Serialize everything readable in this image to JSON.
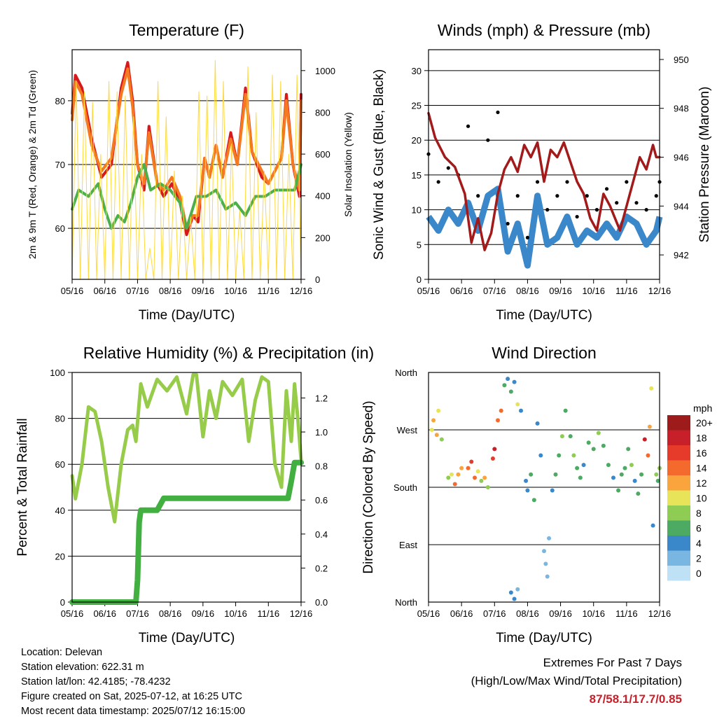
{
  "figure": {
    "time_ticks": [
      "05/16",
      "06/16",
      "07/16",
      "08/16",
      "09/16",
      "10/16",
      "11/16",
      "12/16"
    ],
    "time_label": "Time (Day/UTC)"
  },
  "chart_data": [
    {
      "type": "line",
      "title": "Temperature (F)",
      "xlabel": "Time (Day/UTC)",
      "ylabel": "2m & 9m T (Red, Orange) & 2m Td (Green)",
      "ylabel_right": "Solar Insolation (Yellow)",
      "ylim": [
        52,
        88
      ],
      "yticks": [
        60,
        70,
        80
      ],
      "ylim_right": [
        0,
        1100
      ],
      "yticks_right": [
        0,
        200,
        400,
        600,
        800,
        1000
      ],
      "grid": true,
      "series": [
        {
          "color": "#d7191c",
          "axis": "left",
          "x": [
            0.0,
            0.1,
            0.3,
            0.6,
            0.9,
            1.2,
            1.5,
            1.7,
            1.85,
            2.0,
            2.2,
            2.35,
            2.6,
            2.8,
            3.05,
            3.3,
            3.5,
            3.7,
            3.85,
            4.05,
            4.2,
            4.4,
            4.6,
            4.85,
            5.05,
            5.3,
            5.5,
            5.8,
            6.0,
            6.2,
            6.4,
            6.55,
            6.75,
            6.95,
            7.0
          ],
          "y": [
            78,
            84,
            82,
            74,
            68,
            70,
            82,
            86,
            80,
            70,
            66,
            76,
            67,
            65,
            67,
            64,
            59,
            62,
            61,
            71,
            68,
            73,
            68,
            75,
            70,
            82,
            72,
            68,
            67,
            69,
            71,
            81,
            70,
            65,
            81
          ]
        },
        {
          "color": "#f47920",
          "axis": "left",
          "x": [
            0.0,
            0.1,
            0.3,
            0.6,
            0.9,
            1.2,
            1.5,
            1.7,
            1.85,
            2.0,
            2.2,
            2.35,
            2.6,
            2.8,
            3.05,
            3.3,
            3.5,
            3.7,
            3.85,
            4.05,
            4.2,
            4.4,
            4.6,
            4.85,
            5.05,
            5.3,
            5.5,
            5.8,
            6.0,
            6.2,
            6.4,
            6.55,
            6.75,
            6.95,
            7.0
          ],
          "y": [
            77,
            83,
            81,
            73,
            69,
            71,
            81,
            85,
            79,
            70,
            67,
            75,
            67,
            66,
            68,
            65,
            60,
            62,
            62,
            71,
            68,
            73,
            68,
            74,
            70,
            81,
            72,
            69,
            67,
            69,
            71,
            80,
            70,
            66,
            80
          ]
        },
        {
          "color": "#4daf4a",
          "axis": "left",
          "x": [
            0.0,
            0.2,
            0.5,
            0.8,
            1.0,
            1.2,
            1.4,
            1.6,
            1.8,
            2.0,
            2.2,
            2.4,
            2.7,
            3.0,
            3.3,
            3.5,
            3.8,
            4.1,
            4.4,
            4.7,
            5.0,
            5.3,
            5.6,
            5.9,
            6.2,
            6.5,
            6.8,
            7.0
          ],
          "y": [
            63,
            66,
            65,
            67,
            63,
            60,
            62,
            61,
            64,
            68,
            70,
            66,
            67,
            66,
            64,
            60,
            65,
            65,
            66,
            63,
            64,
            62,
            65,
            65,
            66,
            66,
            66,
            70
          ]
        },
        {
          "color": "#ffd93d",
          "axis": "right",
          "style": "diurnal",
          "day_peaks": [
            950,
            900,
            850,
            600,
            950,
            900,
            880,
            780,
            600,
            150,
            950,
            780,
            520,
            400,
            300,
            900,
            880,
            1050,
            950,
            650,
            330,
            1020,
            800,
            520,
            980,
            950,
            600,
            980
          ],
          "day_starts": [
            0.0,
            0.25,
            0.5,
            0.75,
            1.0,
            1.25,
            1.5,
            1.75,
            2.0,
            2.25,
            2.5,
            2.75,
            3.0,
            3.25,
            3.5,
            3.75,
            4.0,
            4.25,
            4.5,
            4.75,
            5.0,
            5.25,
            5.5,
            5.75,
            6.0,
            6.25,
            6.5,
            6.75
          ]
        }
      ]
    },
    {
      "type": "scatter",
      "title": "Winds (mph) & Pressure (mb)",
      "xlabel": "Time (Day/UTC)",
      "ylabel": "Sonic Wind & Gust (Blue, Black)",
      "ylabel_right": "Station Pressure (Maroon)",
      "ylim": [
        0,
        33
      ],
      "yticks": [
        0,
        5,
        10,
        15,
        20,
        25,
        30
      ],
      "ylim_right": [
        941,
        950.4
      ],
      "yticks_right": [
        942,
        944,
        946,
        948,
        950
      ],
      "grid": true,
      "series": [
        {
          "color": "#3a87c9",
          "type": "band",
          "x": [
            0.0,
            0.3,
            0.6,
            0.9,
            1.2,
            1.5,
            1.8,
            2.1,
            2.4,
            2.7,
            3.0,
            3.3,
            3.6,
            3.9,
            4.2,
            4.5,
            4.8,
            5.1,
            5.4,
            5.7,
            6.0,
            6.3,
            6.6,
            6.9,
            7.0
          ],
          "y": [
            9,
            7,
            10,
            8,
            11,
            7,
            12,
            13,
            4,
            8,
            2,
            12,
            5,
            6,
            9,
            5,
            7,
            6,
            8,
            6,
            9,
            8,
            5,
            7,
            9
          ]
        },
        {
          "color": "#000000",
          "type": "scatter",
          "x": [
            0.0,
            0.3,
            0.6,
            0.9,
            1.2,
            1.5,
            1.8,
            2.1,
            2.4,
            2.7,
            3.0,
            3.3,
            3.6,
            3.9,
            4.2,
            4.5,
            4.8,
            5.1,
            5.4,
            5.7,
            6.0,
            6.3,
            6.6,
            6.9,
            7.0
          ],
          "y": [
            18,
            14,
            16,
            15,
            22,
            12,
            20,
            24,
            8,
            12,
            6,
            14,
            10,
            12,
            14,
            9,
            12,
            10,
            13,
            11,
            14,
            11,
            10,
            12,
            14
          ]
        },
        {
          "color": "#a31a1a",
          "type": "line",
          "axis": "right",
          "x": [
            0.0,
            0.2,
            0.5,
            0.8,
            1.1,
            1.3,
            1.5,
            1.7,
            1.9,
            2.1,
            2.3,
            2.5,
            2.7,
            2.9,
            3.1,
            3.3,
            3.5,
            3.7,
            3.9,
            4.1,
            4.3,
            4.5,
            4.7,
            4.9,
            5.1,
            5.3,
            5.5,
            5.8,
            6.0,
            6.2,
            6.4,
            6.6,
            6.8,
            6.9,
            7.0
          ],
          "y": [
            947.8,
            946.8,
            946.0,
            945.6,
            944.5,
            942.5,
            943.5,
            942.2,
            942.9,
            944.5,
            945.5,
            946.0,
            945.4,
            946.5,
            946.0,
            946.6,
            945.0,
            946.3,
            946.0,
            946.6,
            945.8,
            945.0,
            944.5,
            943.5,
            943.0,
            944.5,
            944.0,
            943.0,
            944.0,
            945.0,
            946.0,
            945.5,
            946.5,
            946.0,
            946.0
          ]
        }
      ]
    },
    {
      "type": "line",
      "title": "Relative Humidity (%) & Precipitation (in)",
      "xlabel": "Time (Day/UTC)",
      "ylabel": "Percent & Total Rainfall",
      "ylim": [
        0,
        100
      ],
      "yticks": [
        0,
        20,
        40,
        60,
        80,
        100
      ],
      "ylim_right": [
        0,
        1.35
      ],
      "yticks_right": [
        0.0,
        0.2,
        0.4,
        0.6,
        0.8,
        1.0,
        1.2
      ],
      "grid": true,
      "series": [
        {
          "color": "#97cc4a",
          "axis": "left",
          "x": [
            0.0,
            0.1,
            0.3,
            0.5,
            0.7,
            0.9,
            1.1,
            1.3,
            1.5,
            1.7,
            1.85,
            1.95,
            2.1,
            2.3,
            2.6,
            2.9,
            3.2,
            3.5,
            3.7,
            3.8,
            4.0,
            4.2,
            4.4,
            4.6,
            4.9,
            5.2,
            5.4,
            5.6,
            5.8,
            6.0,
            6.2,
            6.4,
            6.55,
            6.7,
            6.8,
            6.9,
            7.0
          ],
          "y": [
            55,
            45,
            60,
            85,
            83,
            70,
            50,
            35,
            60,
            75,
            77,
            70,
            95,
            85,
            97,
            92,
            98,
            82,
            99,
            99,
            72,
            92,
            80,
            96,
            90,
            97,
            70,
            88,
            98,
            96,
            60,
            50,
            92,
            70,
            95,
            80,
            62
          ]
        },
        {
          "color": "#41b041",
          "axis": "right",
          "style": "steps",
          "x": [
            0.0,
            1.95,
            2.0,
            2.05,
            2.1,
            2.2,
            2.6,
            2.8,
            2.9,
            3.5,
            4.2,
            5.0,
            5.8,
            6.6,
            6.7,
            6.8,
            7.0
          ],
          "y": [
            0.0,
            0.0,
            0.13,
            0.47,
            0.54,
            0.54,
            0.54,
            0.61,
            0.61,
            0.61,
            0.61,
            0.61,
            0.61,
            0.61,
            0.71,
            0.82,
            0.82
          ]
        }
      ]
    },
    {
      "type": "scatter",
      "title": "Wind Direction",
      "xlabel": "Time (Day/UTC)",
      "ylabel": "Direction (Colored By Speed)",
      "ytick_labels": [
        "North",
        "East",
        "South",
        "West",
        "North"
      ],
      "ylim": [
        0,
        360
      ],
      "grid": true,
      "legend": {
        "title": "mph",
        "labels": [
          "20+",
          "18",
          "16",
          "14",
          "12",
          "10",
          "8",
          "6",
          "4",
          "2",
          "0"
        ],
        "colors": [
          "#9e1b1b",
          "#c8202a",
          "#e63a2a",
          "#f46a2c",
          "#f9a43c",
          "#e8e45a",
          "#8fcc54",
          "#4caa62",
          "#3a87c9",
          "#7ab6e2",
          "#bfe1f6"
        ],
        "placement": "right"
      },
      "points": [
        {
          "x": 0.1,
          "y": 270,
          "speed": 9
        },
        {
          "x": 0.15,
          "y": 285,
          "speed": 11
        },
        {
          "x": 0.25,
          "y": 262,
          "speed": 12
        },
        {
          "x": 0.3,
          "y": 300,
          "speed": 10
        },
        {
          "x": 0.4,
          "y": 255,
          "speed": 7
        },
        {
          "x": 0.6,
          "y": 195,
          "speed": 8
        },
        {
          "x": 0.7,
          "y": 200,
          "speed": 9
        },
        {
          "x": 0.8,
          "y": 185,
          "speed": 13
        },
        {
          "x": 0.9,
          "y": 200,
          "speed": 12
        },
        {
          "x": 1.0,
          "y": 210,
          "speed": 11
        },
        {
          "x": 1.2,
          "y": 210,
          "speed": 14
        },
        {
          "x": 1.3,
          "y": 220,
          "speed": 16
        },
        {
          "x": 1.4,
          "y": 195,
          "speed": 13
        },
        {
          "x": 1.5,
          "y": 205,
          "speed": 9
        },
        {
          "x": 1.6,
          "y": 190,
          "speed": 7
        },
        {
          "x": 1.7,
          "y": 195,
          "speed": 12
        },
        {
          "x": 1.8,
          "y": 180,
          "speed": 8
        },
        {
          "x": 1.95,
          "y": 225,
          "speed": 15
        },
        {
          "x": 2.0,
          "y": 240,
          "speed": 17
        },
        {
          "x": 2.1,
          "y": 285,
          "speed": 14
        },
        {
          "x": 2.2,
          "y": 300,
          "speed": 13
        },
        {
          "x": 2.3,
          "y": 340,
          "speed": 6
        },
        {
          "x": 2.4,
          "y": 350,
          "speed": 4
        },
        {
          "x": 2.5,
          "y": 330,
          "speed": 5
        },
        {
          "x": 2.6,
          "y": 345,
          "speed": 3
        },
        {
          "x": 2.7,
          "y": 310,
          "speed": 10
        },
        {
          "x": 2.8,
          "y": 300,
          "speed": 3
        },
        {
          "x": 2.5,
          "y": 15,
          "speed": 3
        },
        {
          "x": 2.6,
          "y": 5,
          "speed": 4
        },
        {
          "x": 2.7,
          "y": 20,
          "speed": 2
        },
        {
          "x": 2.95,
          "y": 190,
          "speed": 4
        },
        {
          "x": 3.0,
          "y": 175,
          "speed": 3
        },
        {
          "x": 3.1,
          "y": 200,
          "speed": 5
        },
        {
          "x": 3.2,
          "y": 160,
          "speed": 6
        },
        {
          "x": 3.3,
          "y": 280,
          "speed": 4
        },
        {
          "x": 3.4,
          "y": 230,
          "speed": 3
        },
        {
          "x": 3.5,
          "y": 80,
          "speed": 1
        },
        {
          "x": 3.55,
          "y": 60,
          "speed": 2
        },
        {
          "x": 3.6,
          "y": 40,
          "speed": 1
        },
        {
          "x": 3.65,
          "y": 100,
          "speed": 2
        },
        {
          "x": 3.75,
          "y": 175,
          "speed": 4
        },
        {
          "x": 3.85,
          "y": 200,
          "speed": 5
        },
        {
          "x": 3.95,
          "y": 230,
          "speed": 6
        },
        {
          "x": 4.05,
          "y": 260,
          "speed": 7
        },
        {
          "x": 4.15,
          "y": 300,
          "speed": 6
        },
        {
          "x": 4.3,
          "y": 260,
          "speed": 5
        },
        {
          "x": 4.4,
          "y": 230,
          "speed": 7
        },
        {
          "x": 4.5,
          "y": 210,
          "speed": 6
        },
        {
          "x": 4.6,
          "y": 195,
          "speed": 5
        },
        {
          "x": 4.7,
          "y": 215,
          "speed": 4
        },
        {
          "x": 4.85,
          "y": 250,
          "speed": 6
        },
        {
          "x": 5.0,
          "y": 240,
          "speed": 5
        },
        {
          "x": 5.15,
          "y": 265,
          "speed": 7
        },
        {
          "x": 5.3,
          "y": 245,
          "speed": 6
        },
        {
          "x": 5.45,
          "y": 215,
          "speed": 5
        },
        {
          "x": 5.6,
          "y": 195,
          "speed": 4
        },
        {
          "x": 5.75,
          "y": 175,
          "speed": 6
        },
        {
          "x": 5.85,
          "y": 200,
          "speed": 5
        },
        {
          "x": 5.95,
          "y": 210,
          "speed": 6
        },
        {
          "x": 6.05,
          "y": 240,
          "speed": 5
        },
        {
          "x": 6.15,
          "y": 215,
          "speed": 7
        },
        {
          "x": 6.25,
          "y": 190,
          "speed": 4
        },
        {
          "x": 6.35,
          "y": 170,
          "speed": 6
        },
        {
          "x": 6.45,
          "y": 200,
          "speed": 5
        },
        {
          "x": 6.55,
          "y": 255,
          "speed": 17
        },
        {
          "x": 6.65,
          "y": 230,
          "speed": 14
        },
        {
          "x": 6.7,
          "y": 275,
          "speed": 12
        },
        {
          "x": 6.75,
          "y": 335,
          "speed": 10
        },
        {
          "x": 6.8,
          "y": 120,
          "speed": 4
        },
        {
          "x": 6.9,
          "y": 200,
          "speed": 7
        },
        {
          "x": 6.95,
          "y": 190,
          "speed": 6
        },
        {
          "x": 7.0,
          "y": 210,
          "speed": 8
        }
      ]
    }
  ],
  "info": {
    "location": "Location: Delevan",
    "elevation": "Station elevation: 622.31 m",
    "latlon": "Station lat/lon: 42.4185; -78.4232",
    "created": "Figure created on Sat, 2025-07-12, at 16:25 UTC",
    "recent": "Most recent data timestamp: 2025/07/12 16:15:00"
  },
  "extremes": {
    "line1": "Extremes For Past 7 Days",
    "line2": "(High/Low/Max Wind/Total Precipitation)",
    "values": "87/58.1/17.7/0.85"
  }
}
